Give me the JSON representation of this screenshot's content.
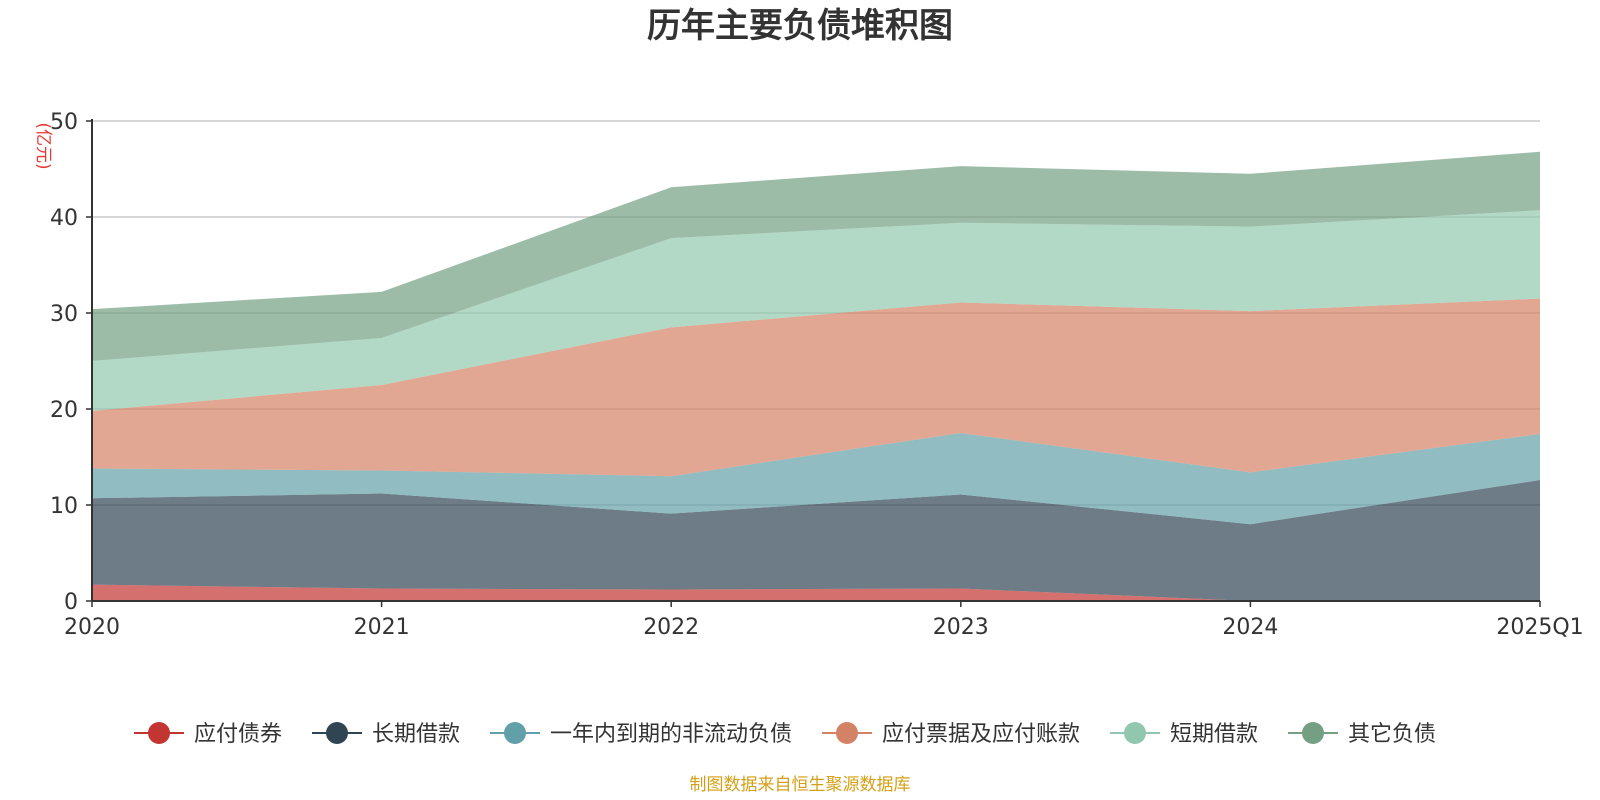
{
  "chart_data": {
    "type": "area",
    "stacked": true,
    "title": "历年主要负债堆积图",
    "unit_label": "(亿元)",
    "x": [
      "2020",
      "2021",
      "2022",
      "2023",
      "2024",
      "2025Q1"
    ],
    "ylim": [
      0,
      50
    ],
    "yticks": [
      "0",
      "10",
      "20",
      "30",
      "40",
      "50"
    ],
    "grid": true,
    "legend_position": "bottom",
    "series": [
      {
        "name": "应付债券",
        "color": "#c23531",
        "values": [
          1.7,
          1.3,
          1.2,
          1.3,
          0,
          0
        ]
      },
      {
        "name": "长期借款",
        "color": "#2f4554",
        "values": [
          9.0,
          9.9,
          7.9,
          9.8,
          8.0,
          12.6
        ]
      },
      {
        "name": "一年内到期的非流动负债",
        "color": "#61a0a8",
        "values": [
          3.1,
          2.4,
          3.9,
          6.4,
          5.4,
          4.8
        ]
      },
      {
        "name": "应付票据及应付账款",
        "color": "#d48265",
        "values": [
          6.0,
          8.9,
          15.5,
          13.6,
          16.8,
          14.1
        ]
      },
      {
        "name": "短期借款",
        "color": "#91c7ae",
        "values": [
          5.2,
          4.9,
          9.3,
          8.3,
          8.8,
          9.2
        ]
      },
      {
        "name": "其它负债",
        "color": "#749f83",
        "values": [
          5.4,
          4.8,
          5.3,
          5.9,
          5.5,
          6.1
        ]
      }
    ]
  },
  "source_note": "制图数据来自恒生聚源数据库"
}
